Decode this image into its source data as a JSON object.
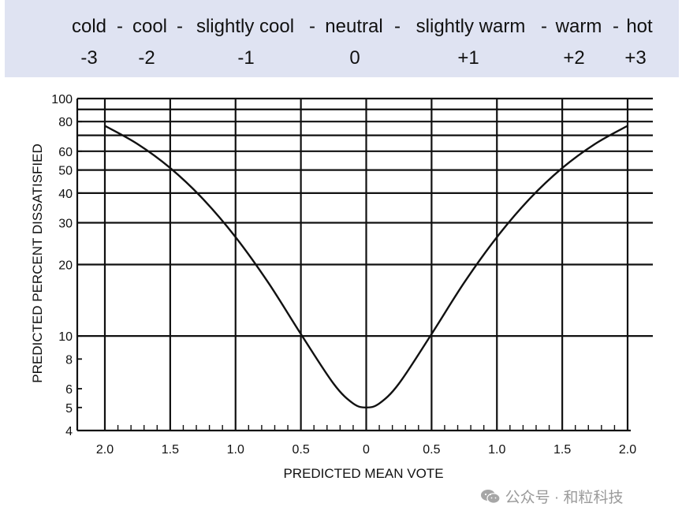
{
  "banner": {
    "words": [
      "cold",
      "-",
      "cool",
      "-",
      "slightly cool",
      "-",
      "neutral",
      "-",
      "slightly warm",
      "-",
      "warm",
      "-",
      "hot"
    ],
    "numbers": [
      "-3",
      "-2",
      "-1",
      "0",
      "+1",
      "+2",
      "+3"
    ]
  },
  "chart_data": {
    "type": "line",
    "title": "",
    "xlabel": "PREDICTED MEAN VOTE",
    "ylabel": "PREDICTED PERCENT DISSATISFIED",
    "x_tick_labels": [
      "2.0",
      "1.5",
      "1.0",
      "0.5",
      "0",
      "0.5",
      "1.0",
      "1.5",
      "2.0"
    ],
    "x_values_note_ticks": [
      -2.0,
      -1.5,
      -1.0,
      -0.5,
      0,
      0.5,
      1.0,
      1.5,
      2.0
    ],
    "xlim": [
      -2.0,
      2.0
    ],
    "y_scale": "log",
    "ylim": [
      4,
      100
    ],
    "y_tick_labels": [
      "4",
      "5",
      "6",
      "8",
      "10",
      "20",
      "30",
      "40",
      "50",
      "60",
      "80",
      "100"
    ],
    "y_ticks": [
      4,
      5,
      6,
      8,
      10,
      20,
      30,
      40,
      50,
      60,
      80,
      100
    ],
    "y_gridlines": [
      10,
      20,
      30,
      40,
      50,
      60,
      70,
      80,
      90,
      100
    ],
    "grid": true,
    "series": [
      {
        "x": [
          -2.0,
          -1.75,
          -1.5,
          -1.25,
          -1.0,
          -0.75,
          -0.5,
          -0.25,
          -0.1,
          0,
          0.1,
          0.25,
          0.5,
          0.75,
          1.0,
          1.25,
          1.5,
          1.75,
          2.0
        ],
        "y": [
          76.8,
          64.4,
          51.0,
          37.8,
          26.1,
          16.8,
          10.2,
          6.3,
          5.2,
          5.0,
          5.2,
          6.3,
          10.2,
          16.8,
          26.1,
          37.8,
          51.0,
          64.4,
          76.8
        ]
      }
    ]
  },
  "watermark": {
    "text": "公众号 · 和粒科技",
    "icon": "wechat-icon"
  }
}
